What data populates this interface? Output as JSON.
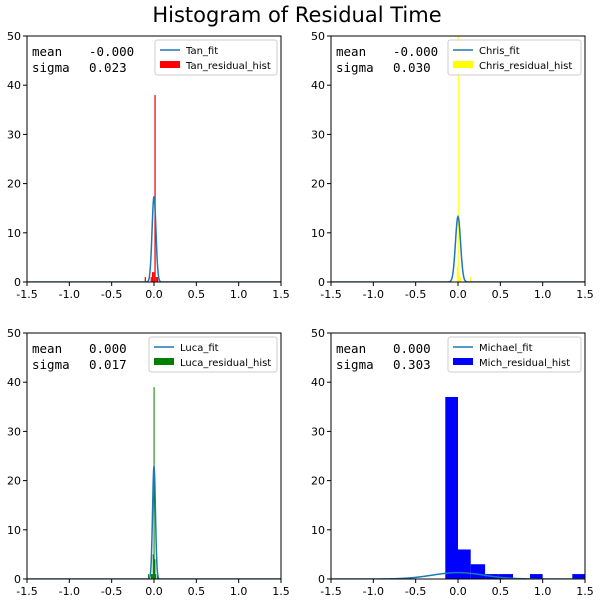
{
  "figure": {
    "title": "Histogram of Residual Time"
  },
  "chart_data": [
    {
      "type": "bar",
      "title": "",
      "xlabel": "",
      "ylabel": "",
      "xlim": [
        -1.5,
        1.5
      ],
      "ylim": [
        0,
        50
      ],
      "x_ticks": [
        "-1.5",
        "-1.0",
        "-0.5",
        "0.0",
        "0.5",
        "1.0",
        "1.5"
      ],
      "y_ticks": [
        "0",
        "10",
        "20",
        "30",
        "40",
        "50"
      ],
      "stats": {
        "mean_label": "mean",
        "mean_value": "-0.000",
        "sigma_label": "sigma",
        "sigma_value": "0.023"
      },
      "legend_position": "top-right",
      "fit": {
        "name": "Tan_fit",
        "color": "#1f77b4",
        "mean": 0.0,
        "sigma": 0.023,
        "peak": 17.4
      },
      "histogram": {
        "name": "Tan_residual_hist",
        "color": "#ff0000",
        "bins": [
          {
            "left": -0.11,
            "right": -0.095,
            "count": 1
          },
          {
            "left": -0.04,
            "right": -0.025,
            "count": 1
          },
          {
            "left": -0.025,
            "right": -0.01,
            "count": 2
          },
          {
            "left": -0.01,
            "right": 0.005,
            "count": 2
          },
          {
            "left": 0.005,
            "right": 0.02,
            "count": 38
          },
          {
            "left": 0.02,
            "right": 0.035,
            "count": 1
          },
          {
            "left": 0.035,
            "right": 0.05,
            "count": 1
          }
        ]
      }
    },
    {
      "type": "bar",
      "title": "",
      "xlabel": "",
      "ylabel": "",
      "xlim": [
        -1.5,
        1.5
      ],
      "ylim": [
        0,
        50
      ],
      "x_ticks": [
        "-1.5",
        "-1.0",
        "-0.5",
        "0.0",
        "0.5",
        "1.0",
        "1.5"
      ],
      "y_ticks": [
        "0",
        "10",
        "20",
        "30",
        "40",
        "50"
      ],
      "stats": {
        "mean_label": "mean",
        "mean_value": "-0.000",
        "sigma_label": "sigma",
        "sigma_value": "0.030"
      },
      "legend_position": "top-right",
      "fit": {
        "name": "Chris_fit",
        "color": "#1f77b4",
        "mean": 0.0,
        "sigma": 0.03,
        "peak": 13.3
      },
      "histogram": {
        "name": "Chris_residual_hist",
        "color": "#ffff00",
        "bins": [
          {
            "left": -0.015,
            "right": -0.003,
            "count": 3
          },
          {
            "left": -0.003,
            "right": 0.009,
            "count": 50
          },
          {
            "left": 0.009,
            "right": 0.021,
            "count": 2
          },
          {
            "left": 0.021,
            "right": 0.033,
            "count": 1
          },
          {
            "left": 0.14,
            "right": 0.152,
            "count": 1
          }
        ]
      }
    },
    {
      "type": "bar",
      "title": "",
      "xlabel": "",
      "ylabel": "",
      "xlim": [
        -1.5,
        1.5
      ],
      "ylim": [
        0,
        50
      ],
      "x_ticks": [
        "-1.5",
        "-1.0",
        "-0.5",
        "0.0",
        "0.5",
        "1.0",
        "1.5"
      ],
      "y_ticks": [
        "0",
        "10",
        "20",
        "30",
        "40",
        "50"
      ],
      "stats": {
        "mean_label": "mean",
        "mean_value": "0.000",
        "sigma_label": "sigma",
        "sigma_value": "0.017"
      },
      "legend_position": "top-right",
      "fit": {
        "name": "Luca_fit",
        "color": "#1f77b4",
        "mean": 0.0,
        "sigma": 0.017,
        "peak": 23.0
      },
      "histogram": {
        "name": "Luca_residual_hist",
        "color": "#008000",
        "bins": [
          {
            "left": -0.07,
            "right": -0.06,
            "count": 1
          },
          {
            "left": -0.035,
            "right": -0.025,
            "count": 1
          },
          {
            "left": -0.025,
            "right": -0.015,
            "count": 1
          },
          {
            "left": -0.015,
            "right": -0.005,
            "count": 5
          },
          {
            "left": -0.005,
            "right": 0.005,
            "count": 39
          },
          {
            "left": 0.005,
            "right": 0.015,
            "count": 4
          },
          {
            "left": 0.015,
            "right": 0.025,
            "count": 1
          },
          {
            "left": 0.035,
            "right": 0.045,
            "count": 1
          }
        ]
      }
    },
    {
      "type": "bar",
      "title": "",
      "xlabel": "",
      "ylabel": "",
      "xlim": [
        -1.5,
        1.5
      ],
      "ylim": [
        0,
        50
      ],
      "x_ticks": [
        "-1.5",
        "-1.0",
        "-0.5",
        "0.0",
        "0.5",
        "1.0",
        "1.5"
      ],
      "y_ticks": [
        "0",
        "10",
        "20",
        "30",
        "40",
        "50"
      ],
      "stats": {
        "mean_label": "mean",
        "mean_value": "0.000",
        "sigma_label": "sigma",
        "sigma_value": "0.303"
      },
      "legend_position": "top-right",
      "fit": {
        "name": "Michael_fit",
        "color": "#1f77b4",
        "mean": 0.0,
        "sigma": 0.303,
        "peak": 1.3
      },
      "histogram": {
        "name": "Mich_residual_hist",
        "color": "#0000ff",
        "bins": [
          {
            "left": -0.15,
            "right": 0.0,
            "count": 37
          },
          {
            "left": 0.0,
            "right": 0.15,
            "count": 6
          },
          {
            "left": 0.15,
            "right": 0.32,
            "count": 3
          },
          {
            "left": 0.32,
            "right": 0.48,
            "count": 1
          },
          {
            "left": 0.48,
            "right": 0.65,
            "count": 1
          },
          {
            "left": 0.85,
            "right": 1.0,
            "count": 1
          },
          {
            "left": 1.35,
            "right": 1.5,
            "count": 1
          }
        ]
      }
    }
  ]
}
